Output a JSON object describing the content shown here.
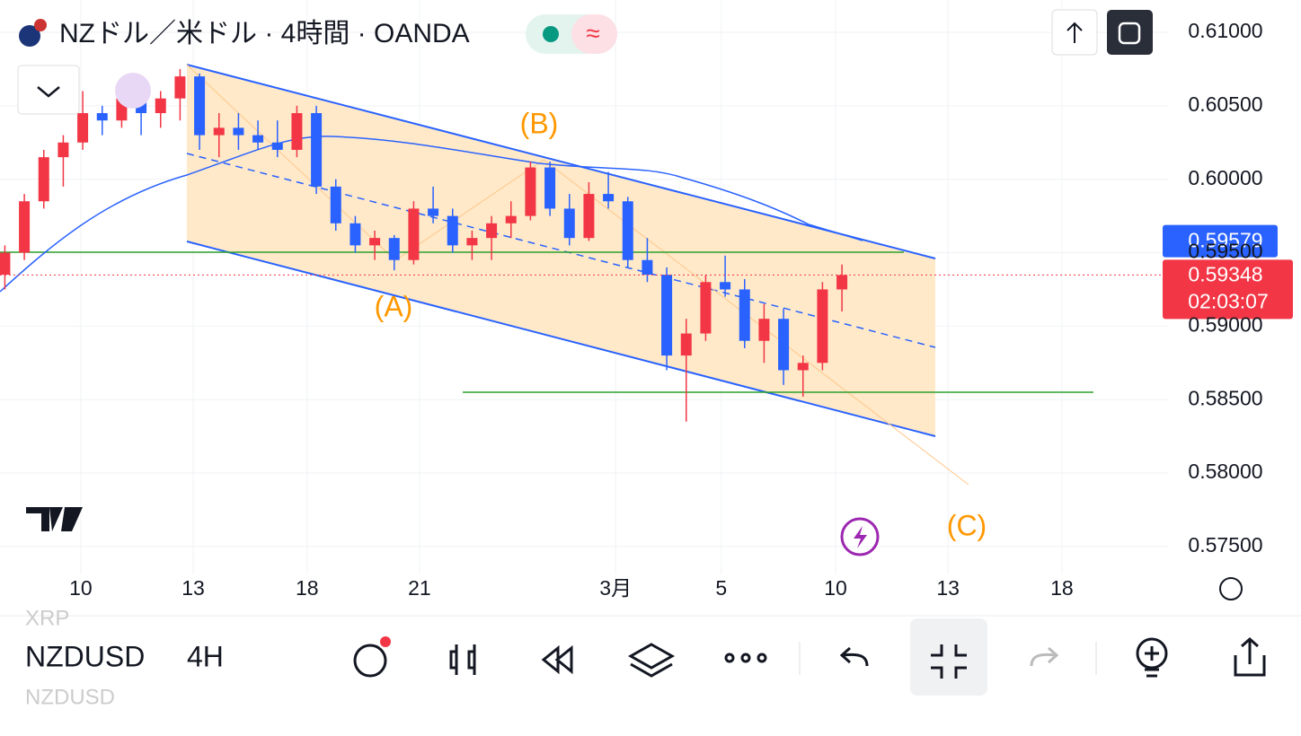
{
  "chart_data": {
    "type": "candlestick",
    "title": "NZドル／米ドル · 4時間 · OANDA",
    "x": [
      1,
      5,
      9,
      13,
      17,
      21,
      25,
      29,
      33,
      37,
      41,
      45,
      49,
      53,
      57,
      61,
      65,
      69,
      73,
      77,
      81,
      85,
      89,
      93,
      97,
      101,
      105,
      109,
      113,
      117,
      121,
      125,
      129,
      133,
      137,
      141,
      145,
      149,
      153,
      157,
      161,
      165,
      169,
      173
    ],
    "open": [
      0.5935,
      0.595,
      0.5985,
      0.6015,
      0.6025,
      0.6045,
      0.604,
      0.6055,
      0.6045,
      0.6055,
      0.607,
      0.603,
      0.6035,
      0.603,
      0.6025,
      0.602,
      0.6045,
      0.5995,
      0.597,
      0.5955,
      0.596,
      0.5945,
      0.598,
      0.5975,
      0.5955,
      0.596,
      0.597,
      0.5975,
      0.6008,
      0.598,
      0.596,
      0.599,
      0.5985,
      0.5945,
      0.5935,
      0.588,
      0.5895,
      0.593,
      0.5925,
      0.589,
      0.5905,
      0.587,
      0.5875,
      0.5925
    ],
    "high": [
      0.5955,
      0.599,
      0.602,
      0.603,
      0.606,
      0.605,
      0.6065,
      0.6065,
      0.606,
      0.6075,
      0.6072,
      0.6045,
      0.6045,
      0.604,
      0.604,
      0.605,
      0.605,
      0.6,
      0.5975,
      0.5965,
      0.5962,
      0.5985,
      0.5995,
      0.598,
      0.5965,
      0.5975,
      0.5985,
      0.6012,
      0.6012,
      0.599,
      0.5998,
      0.6005,
      0.5988,
      0.596,
      0.594,
      0.5905,
      0.5935,
      0.5948,
      0.5932,
      0.5915,
      0.5912,
      0.588,
      0.593,
      0.5942
    ],
    "low": [
      0.5925,
      0.5945,
      0.598,
      0.5995,
      0.602,
      0.603,
      0.6035,
      0.603,
      0.6035,
      0.604,
      0.602,
      0.6015,
      0.602,
      0.602,
      0.6015,
      0.6015,
      0.599,
      0.5965,
      0.595,
      0.5945,
      0.5938,
      0.5942,
      0.597,
      0.595,
      0.5945,
      0.5945,
      0.596,
      0.5972,
      0.5975,
      0.5955,
      0.5958,
      0.598,
      0.594,
      0.593,
      0.587,
      0.5835,
      0.589,
      0.592,
      0.5885,
      0.5875,
      0.586,
      0.5852,
      0.587,
      0.591
    ],
    "close": [
      0.595,
      0.5985,
      0.6015,
      0.6025,
      0.6045,
      0.604,
      0.6055,
      0.6045,
      0.6055,
      0.607,
      0.603,
      0.6035,
      0.603,
      0.6025,
      0.602,
      0.6045,
      0.5995,
      0.597,
      0.5955,
      0.596,
      0.5945,
      0.598,
      0.5975,
      0.5955,
      0.596,
      0.597,
      0.5975,
      0.6008,
      0.598,
      0.596,
      0.599,
      0.5985,
      0.5945,
      0.5935,
      0.588,
      0.5895,
      0.593,
      0.5925,
      0.589,
      0.5905,
      0.587,
      0.5875,
      0.5925,
      0.59348
    ],
    "up_color": "#f23645",
    "down_color": "#2962ff",
    "xlim": [
      0,
      240
    ],
    "xticks": [
      {
        "value": 16.6,
        "label": "10"
      },
      {
        "value": 39.7,
        "label": "13"
      },
      {
        "value": 63.1,
        "label": "18"
      },
      {
        "value": 86.2,
        "label": "21"
      },
      {
        "value": 126.5,
        "label": "3月"
      },
      {
        "value": 148.2,
        "label": "5"
      },
      {
        "value": 171.7,
        "label": "10"
      },
      {
        "value": 194.8,
        "label": "13"
      },
      {
        "value": 218.2,
        "label": "18"
      }
    ],
    "ylim": [
      0.5731,
      0.6122
    ],
    "yticks": [
      {
        "value": 0.575,
        "label": "0.57500"
      },
      {
        "value": 0.58,
        "label": "0.58000"
      },
      {
        "value": 0.585,
        "label": "0.58500"
      },
      {
        "value": 0.59,
        "label": "0.59000"
      },
      {
        "value": 0.595,
        "label": "0.59500"
      },
      {
        "value": 0.6,
        "label": "0.60000"
      },
      {
        "value": 0.605,
        "label": "0.60500"
      },
      {
        "value": 0.61,
        "label": "0.61000"
      }
    ],
    "grid": true,
    "ma_value": 0.59579,
    "current_price": 0.59348,
    "countdown": "02:03:07",
    "annotations": [
      "(A)",
      "(B)",
      "(C)"
    ]
  },
  "toolbar": {
    "symbol": "NZDUSD",
    "interval": "4H",
    "prev_symbol": "XRP",
    "next_symbol": "NZDUSD"
  }
}
